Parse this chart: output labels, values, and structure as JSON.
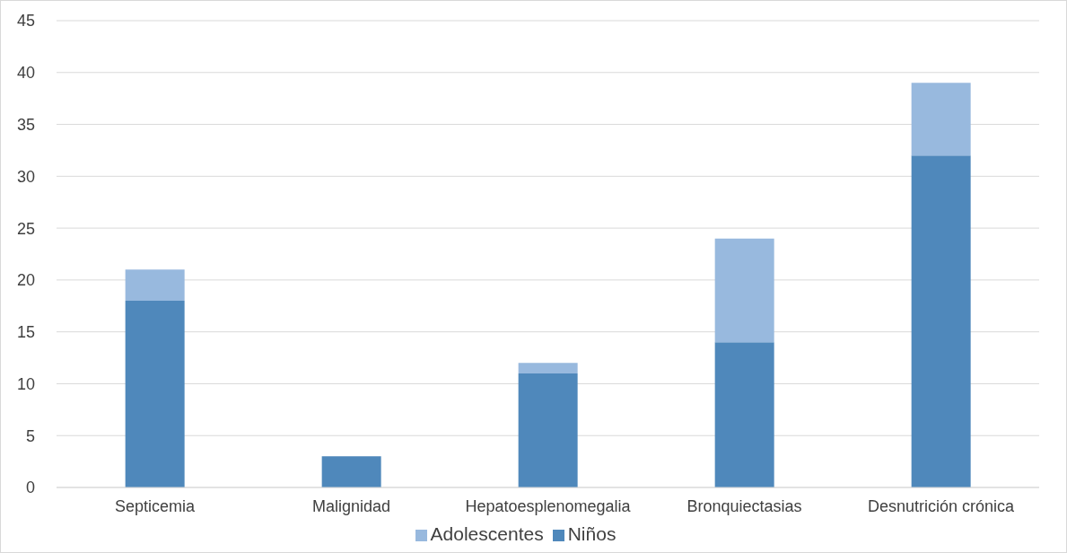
{
  "chart_data": {
    "type": "bar",
    "stacked": true,
    "categories": [
      "Septicemia",
      "Malignidad",
      "Hepatoesplenomegalia",
      "Bronquiectasias",
      "Desnutrición crónica"
    ],
    "series": [
      {
        "name": "Niños",
        "color": "#4f88bb",
        "values": [
          18,
          3,
          11,
          14,
          32
        ]
      },
      {
        "name": "Adolescentes",
        "color": "#98b9de",
        "values": [
          3,
          0,
          1,
          10,
          7
        ]
      }
    ],
    "ylim": [
      0,
      45
    ],
    "yticks": [
      0,
      5,
      10,
      15,
      20,
      25,
      30,
      35,
      40,
      45
    ],
    "grid": "y",
    "legend": "bottom"
  }
}
